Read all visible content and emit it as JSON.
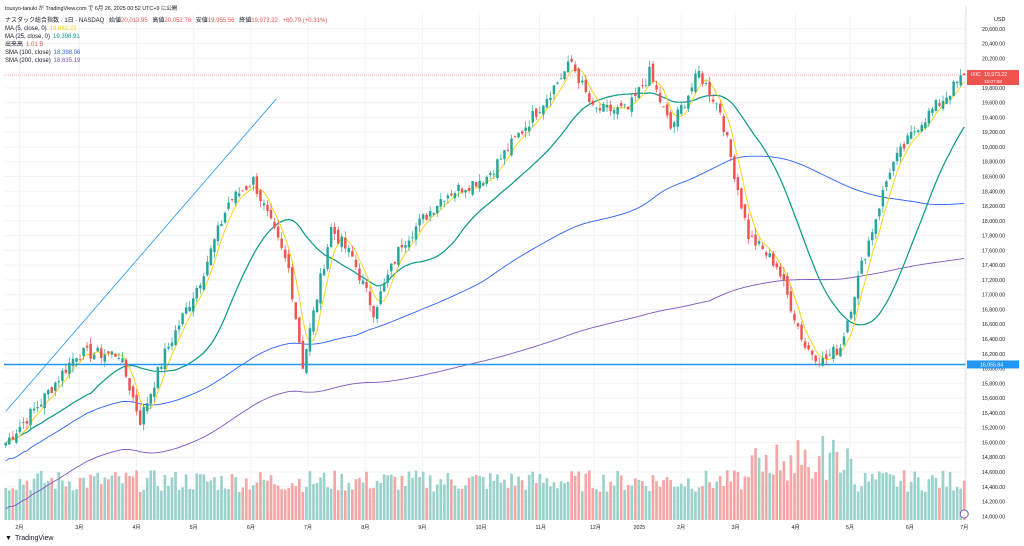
{
  "header": {
    "title": "tousyo-tanuki が TradingView.com で 6月 26, 2025 00:52 UTC+9 に公開",
    "symbol_line": "ナスダック総合指数 · 1日 · NASDAQ",
    "open_label": "始値",
    "open": "20,013.95",
    "high_label": "高値",
    "high": "20,052.78",
    "low_label": "安値",
    "low": "19,955.56",
    "close_label": "終値",
    "close": "19,973.22",
    "change": "+60.79 (+0.31%)"
  },
  "indicators": [
    {
      "label": "MA (5, close, 0)",
      "value": "19,882.23",
      "color": "#f7d21e"
    },
    {
      "label": "MA (25, close, 0)",
      "value": "19,396.91",
      "color": "#089981"
    },
    {
      "label": "出来高",
      "value": "1.01 B",
      "color": "#ef5350"
    },
    {
      "label": "SMA (100, close)",
      "value": "18,398.06",
      "color": "#2962ff"
    },
    {
      "label": "SMA (200, close)",
      "value": "18,635.19",
      "color": "#7e57c2"
    }
  ],
  "brand": {
    "name": "TradingView"
  },
  "colors": {
    "up": "#26a69a",
    "down": "#ef5350",
    "ma5": "#f7d21e",
    "ma25": "#089981",
    "sma100": "#2962ff",
    "sma200": "#7e57c2",
    "hline": "#2196f3"
  },
  "chart_data": {
    "type": "candlestick",
    "currency": "USD",
    "y_ticks": [
      "20,600.00",
      "20,400.00",
      "20,200.00",
      "20,000.00",
      "19,800.00",
      "19,600.00",
      "19,400.00",
      "19,200.00",
      "19,000.00",
      "18,800.00",
      "18,600.00",
      "18,400.00",
      "18,200.00",
      "18,000.00",
      "17,800.00",
      "17,600.00",
      "17,400.00",
      "17,200.00",
      "17,000.00",
      "16,800.00",
      "16,600.00",
      "16,400.00",
      "16,200.00",
      "16,000.00",
      "15,800.00",
      "15,600.00",
      "15,400.00",
      "15,200.00",
      "15,000.00",
      "14,800.00",
      "14,600.00",
      "14,400.00",
      "14,200.00",
      "14,000.00"
    ],
    "x_ticks": [
      "2月",
      "3月",
      "4月",
      "5月",
      "6月",
      "7月",
      "8月",
      "9月",
      "10月",
      "11月",
      "12月",
      "2025",
      "2月",
      "3月",
      "4月",
      "5月",
      "6月",
      "7月"
    ],
    "ylim": [
      13950,
      20800
    ],
    "last_price": {
      "label": "IXIC",
      "value": "19,973.22",
      "countdown": "15:07:08"
    },
    "horizontal_line": {
      "value": 16055.84,
      "label": "16,055.84"
    },
    "trendline": [
      {
        "x": 0,
        "y": 15420
      },
      {
        "x": 68,
        "y": 19650
      }
    ],
    "anchors": [
      {
        "x": 0,
        "c": 15000
      },
      {
        "x": 10,
        "c": 15550
      },
      {
        "x": 20,
        "c": 16200
      },
      {
        "x": 32,
        "c": 16200
      },
      {
        "x": 38,
        "c": 15300
      },
      {
        "x": 45,
        "c": 16200
      },
      {
        "x": 55,
        "c": 17200
      },
      {
        "x": 63,
        "c": 18250
      },
      {
        "x": 70,
        "c": 18550
      },
      {
        "x": 80,
        "c": 17350
      },
      {
        "x": 84,
        "c": 16050
      },
      {
        "x": 92,
        "c": 17900
      },
      {
        "x": 98,
        "c": 17500
      },
      {
        "x": 104,
        "c": 16780
      },
      {
        "x": 112,
        "c": 17700
      },
      {
        "x": 124,
        "c": 18350
      },
      {
        "x": 136,
        "c": 18600
      },
      {
        "x": 148,
        "c": 19350
      },
      {
        "x": 160,
        "c": 20150
      },
      {
        "x": 166,
        "c": 19500
      },
      {
        "x": 176,
        "c": 19500
      },
      {
        "x": 182,
        "c": 20000
      },
      {
        "x": 188,
        "c": 19250
      },
      {
        "x": 196,
        "c": 20000
      },
      {
        "x": 202,
        "c": 19500
      },
      {
        "x": 210,
        "c": 17800
      },
      {
        "x": 218,
        "c": 17400
      },
      {
        "x": 226,
        "c": 16300
      },
      {
        "x": 231,
        "c": 16100
      },
      {
        "x": 236,
        "c": 16300
      },
      {
        "x": 242,
        "c": 17400
      },
      {
        "x": 250,
        "c": 18700
      },
      {
        "x": 258,
        "c": 19300
      },
      {
        "x": 266,
        "c": 19700
      },
      {
        "x": 271,
        "c": 19973
      }
    ]
  }
}
